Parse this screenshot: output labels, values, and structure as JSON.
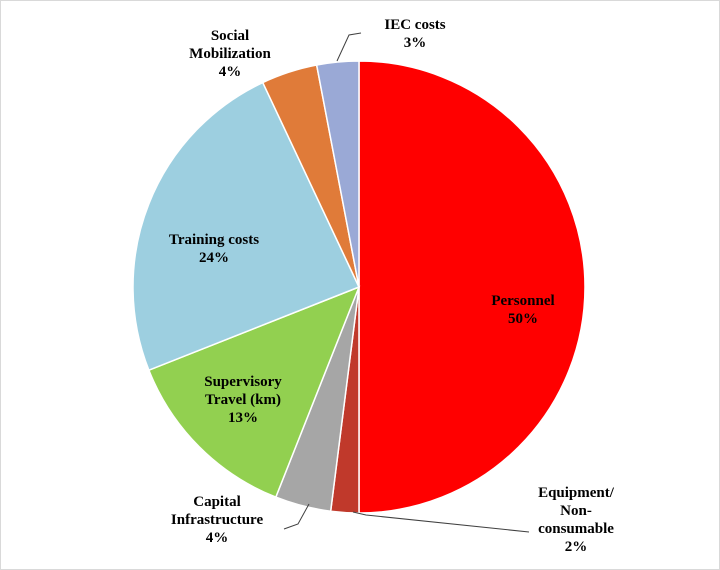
{
  "chart_data": {
    "type": "pie",
    "title": "",
    "start_angle_deg": 0,
    "direction": "clockwise",
    "slices": [
      {
        "label": [
          "Personnel",
          "50%"
        ],
        "value": 50,
        "color": "#ff0000"
      },
      {
        "label": [
          "Equipment/",
          "Non-",
          "consumable",
          "2%"
        ],
        "value": 2,
        "color": "#c0392b"
      },
      {
        "label": [
          "Capital",
          "Infrastructure",
          "4%"
        ],
        "value": 4,
        "color": "#a6a6a6"
      },
      {
        "label": [
          "Supervisory",
          "Travel (km)",
          "13%"
        ],
        "value": 13,
        "color": "#92d050"
      },
      {
        "label": [
          "Training costs",
          "24%"
        ],
        "value": 24,
        "color": "#9dcfe0"
      },
      {
        "label": [
          "Social",
          "Mobilization",
          "4%"
        ],
        "value": 4,
        "color": "#e07b39"
      },
      {
        "label": [
          "IEC costs",
          "3%"
        ],
        "value": 3,
        "color": "#9aa9d6"
      }
    ],
    "legend": "none"
  }
}
